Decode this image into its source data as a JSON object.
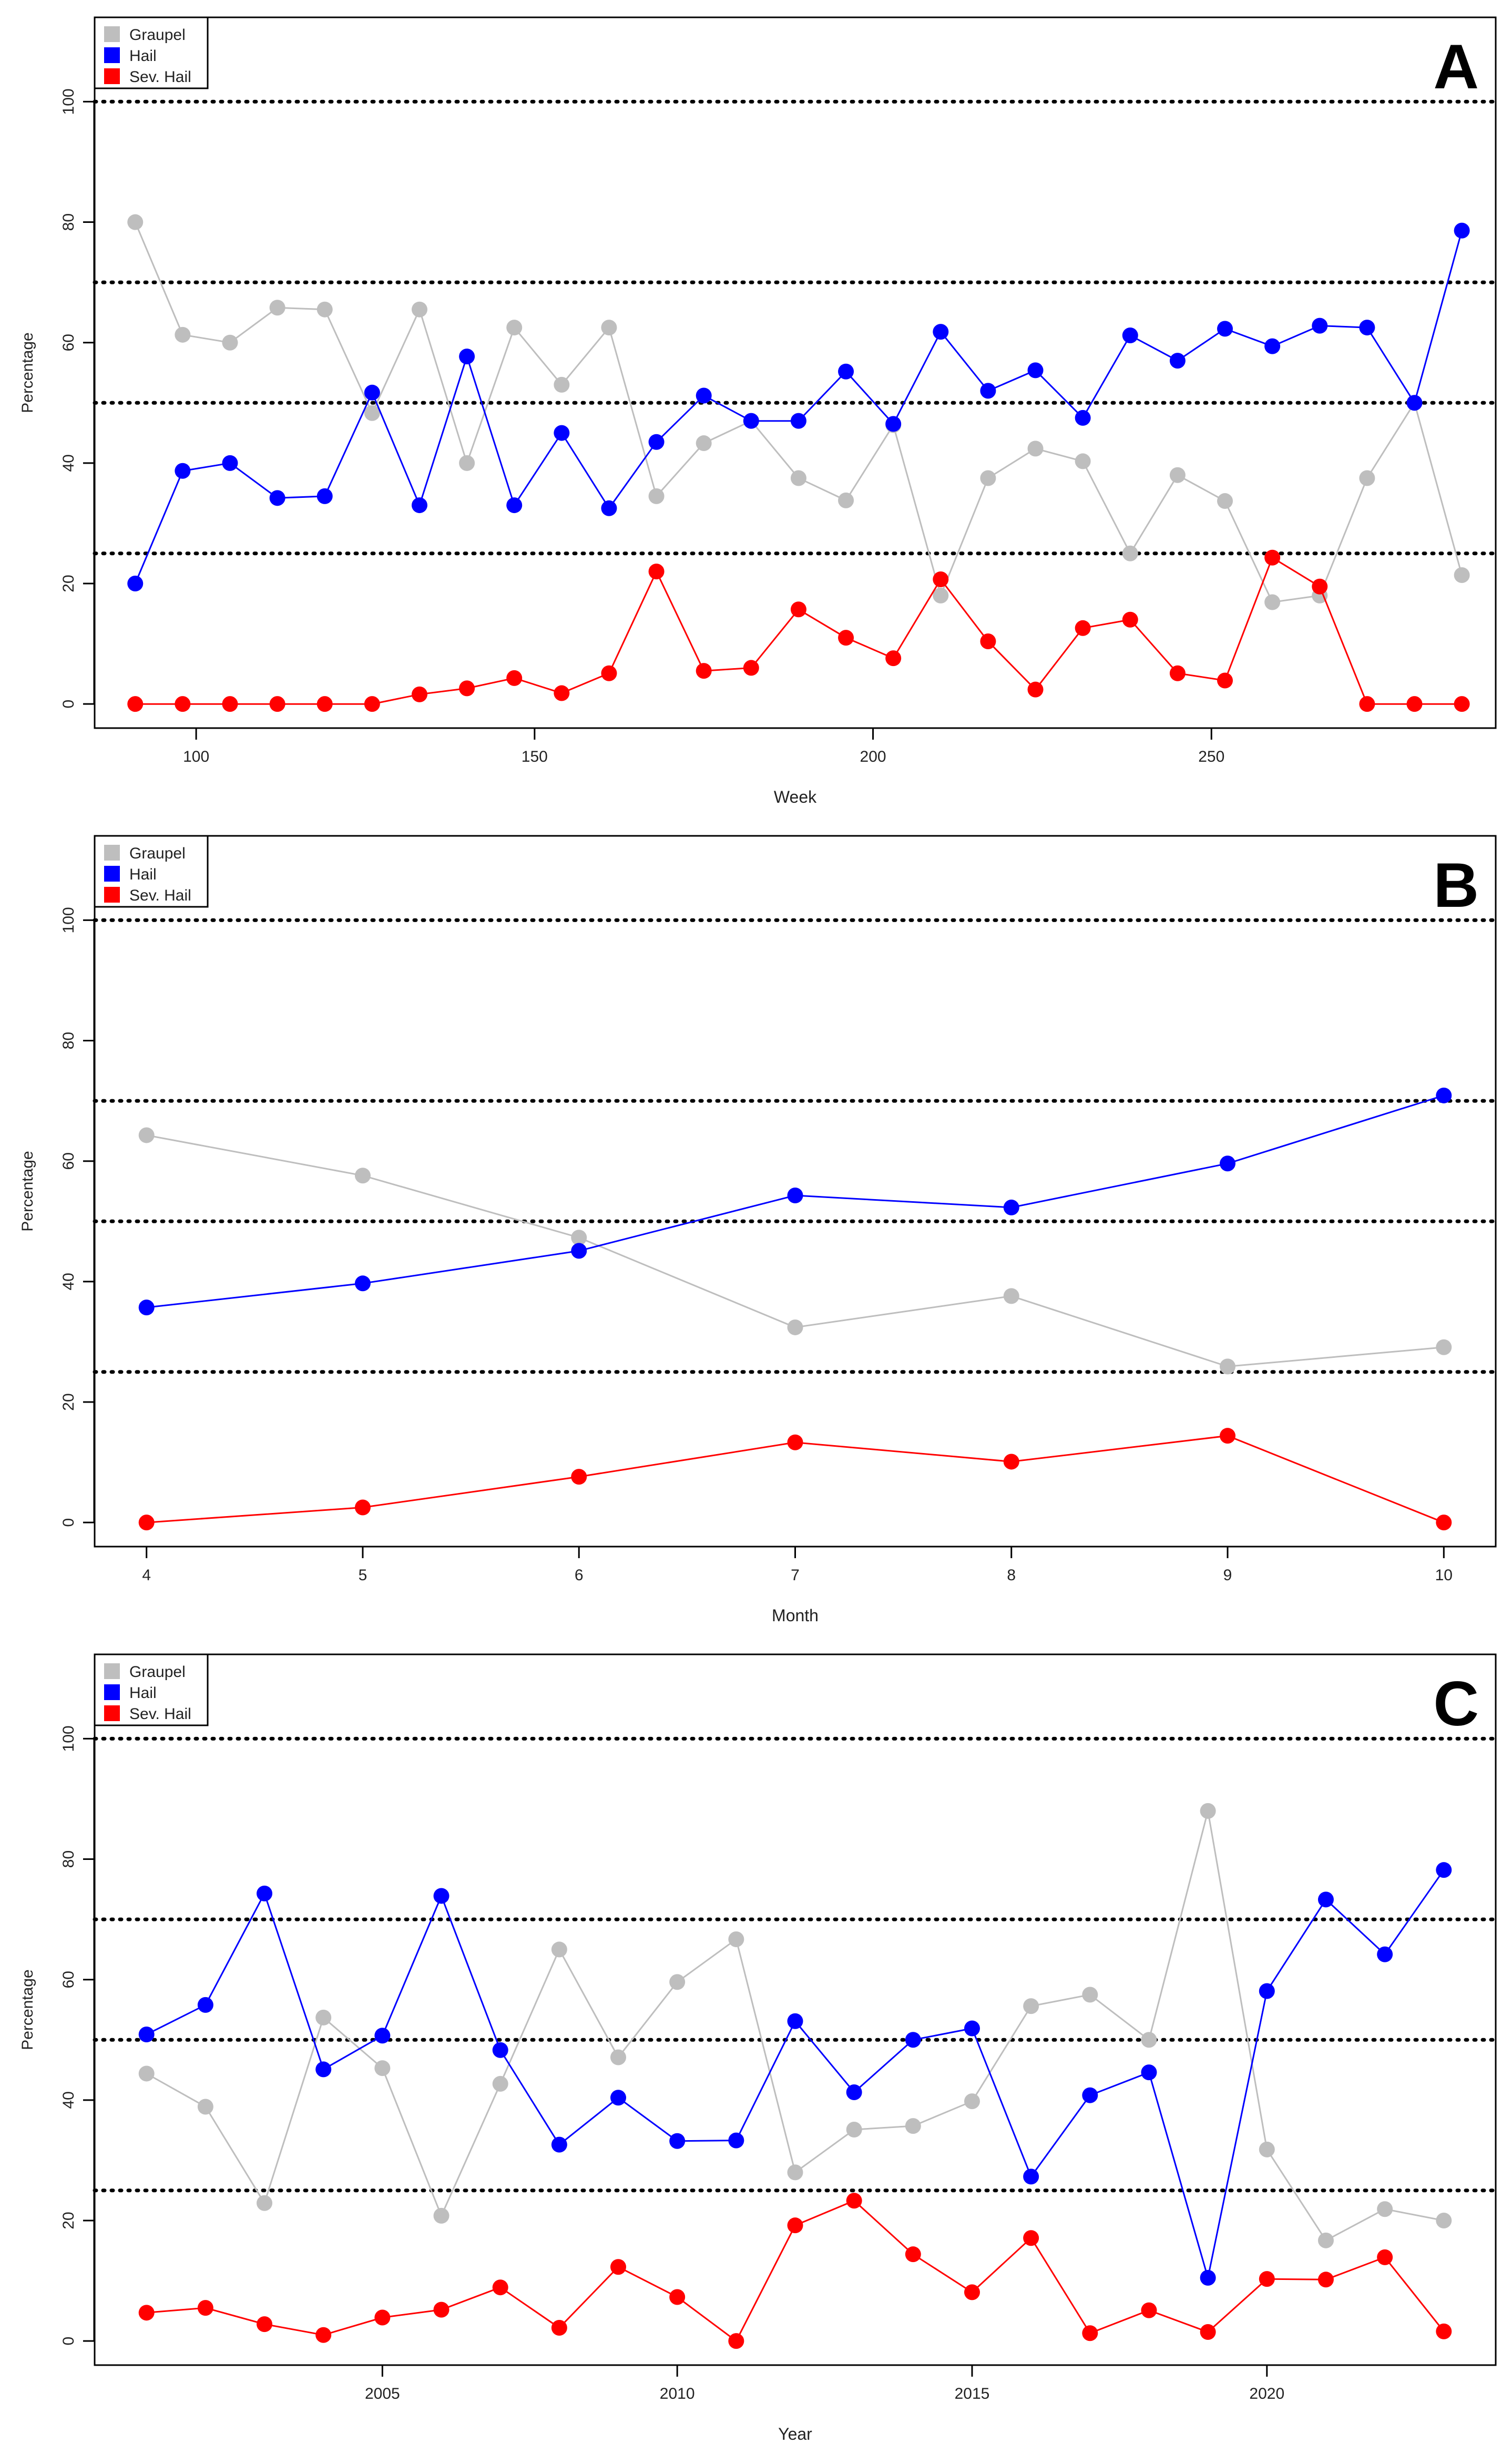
{
  "chart_data": [
    {
      "type": "line",
      "panel_label": "A",
      "xlabel": "Week",
      "ylabel": "Percentage",
      "xlim": [
        85,
        292
      ],
      "ylim": [
        -4,
        114
      ],
      "xticks": [
        100,
        150,
        200,
        250
      ],
      "yticks": [
        0,
        20,
        40,
        60,
        80,
        100
      ],
      "reference_lines": [
        25,
        50,
        70,
        100
      ],
      "legend_position": "top-left",
      "x": [
        91,
        98,
        105,
        112,
        119,
        126,
        133,
        140,
        147,
        154,
        161,
        168,
        175,
        182,
        189,
        196,
        203,
        210,
        217,
        224,
        231,
        238,
        245,
        252,
        259,
        266,
        273,
        280,
        287
      ],
      "series": [
        {
          "name": "Graupel",
          "color": "#BEBEBE",
          "values": [
            80,
            61.3,
            60,
            65.8,
            65.5,
            48.3,
            65.5,
            40,
            62.5,
            53,
            62.5,
            34.5,
            43.3,
            47,
            37.5,
            33.8,
            46.3,
            18,
            37.5,
            42.4,
            40.3,
            25,
            38,
            33.7,
            16.9,
            18,
            37.5,
            50,
            21.4
          ]
        },
        {
          "name": "Hail",
          "color": "#0000FF",
          "values": [
            20,
            38.7,
            40,
            34.2,
            34.5,
            51.7,
            33,
            57.7,
            33,
            45,
            32.5,
            43.5,
            51.2,
            47,
            47,
            55.2,
            46.5,
            61.8,
            52,
            55.4,
            47.5,
            61.2,
            57,
            62.3,
            59.4,
            62.8,
            62.5,
            50,
            78.6
          ]
        },
        {
          "name": "Sev. Hail",
          "color": "#FF0000",
          "values": [
            0,
            0,
            0,
            0,
            0,
            0,
            1.6,
            2.6,
            4.3,
            1.8,
            5.1,
            22,
            5.5,
            6,
            15.7,
            11,
            7.6,
            20.7,
            10.4,
            2.4,
            12.6,
            14,
            5.1,
            3.9,
            24.3,
            19.5,
            0,
            0,
            0
          ]
        }
      ]
    },
    {
      "type": "line",
      "panel_label": "B",
      "xlabel": "Month",
      "ylabel": "Percentage",
      "xlim": [
        3.76,
        10.24
      ],
      "ylim": [
        -4,
        114
      ],
      "xticks": [
        4,
        5,
        6,
        7,
        8,
        9,
        10
      ],
      "yticks": [
        0,
        20,
        40,
        60,
        80,
        100
      ],
      "reference_lines": [
        25,
        50,
        70,
        100
      ],
      "legend_position": "top-left",
      "x": [
        4,
        5,
        6,
        7,
        8,
        9,
        10
      ],
      "series": [
        {
          "name": "Graupel",
          "color": "#BEBEBE",
          "values": [
            64.3,
            57.6,
            47.3,
            32.4,
            37.6,
            25.9,
            29.1
          ]
        },
        {
          "name": "Hail",
          "color": "#0000FF",
          "values": [
            35.7,
            39.7,
            45.1,
            54.3,
            52.3,
            59.6,
            70.9
          ]
        },
        {
          "name": "Sev. Hail",
          "color": "#FF0000",
          "values": [
            0,
            2.5,
            7.6,
            13.3,
            10.1,
            14.4,
            0
          ]
        }
      ]
    },
    {
      "type": "line",
      "panel_label": "C",
      "xlabel": "Year",
      "ylabel": "Percentage",
      "xlim": [
        2000.12,
        2023.88
      ],
      "ylim": [
        -4,
        114
      ],
      "xticks": [
        2005,
        2010,
        2015,
        2020
      ],
      "yticks": [
        0,
        20,
        40,
        60,
        80,
        100
      ],
      "reference_lines": [
        25,
        50,
        70,
        100
      ],
      "legend_position": "top-left",
      "x": [
        2001,
        2002,
        2003,
        2004,
        2005,
        2006,
        2007,
        2008,
        2009,
        2010,
        2011,
        2012,
        2013,
        2014,
        2015,
        2016,
        2017,
        2018,
        2019,
        2020,
        2021,
        2022,
        2023
      ],
      "series": [
        {
          "name": "Graupel",
          "color": "#BEBEBE",
          "values": [
            44.4,
            38.9,
            22.9,
            53.7,
            45.3,
            20.8,
            42.7,
            65,
            47.1,
            59.6,
            66.7,
            28,
            35.1,
            35.7,
            39.8,
            55.6,
            57.5,
            50,
            88,
            31.8,
            16.7,
            21.9,
            20
          ]
        },
        {
          "name": "Hail",
          "color": "#0000FF",
          "values": [
            50.9,
            55.8,
            74.3,
            45.1,
            50.7,
            73.9,
            48.3,
            32.6,
            40.4,
            33.2,
            33.3,
            53.1,
            41.3,
            50,
            51.9,
            27.3,
            40.8,
            44.6,
            10.5,
            58.1,
            73.3,
            64.2,
            78.2
          ]
        },
        {
          "name": "Sev. Hail",
          "color": "#FF0000",
          "values": [
            4.7,
            5.5,
            2.8,
            1,
            3.9,
            5.2,
            8.9,
            2.2,
            12.3,
            7.3,
            0,
            19.2,
            23.3,
            14.4,
            8.1,
            17.1,
            1.3,
            5.1,
            1.5,
            10.3,
            10.2,
            13.9,
            1.6
          ]
        }
      ]
    }
  ]
}
